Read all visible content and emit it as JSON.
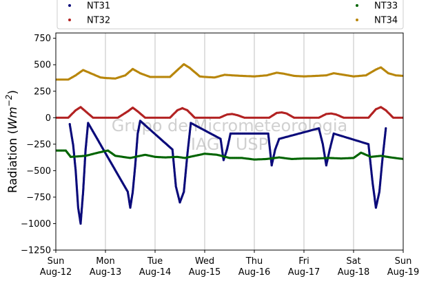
{
  "chart_data": {
    "type": "scatter",
    "title": "",
    "ylabel": "Radiation (Wm⁻²)",
    "ylabel_parts": {
      "main": "Radiation (",
      "unit": "Wm",
      "exp": "−2",
      "close": ")"
    },
    "xlabel": "",
    "ylim": [
      -1250,
      800
    ],
    "yticks": [
      -1250,
      -1000,
      -750,
      -500,
      -250,
      0,
      250,
      500,
      750
    ],
    "ytick_labels": [
      "−1250",
      "−1000",
      "−750",
      "−500",
      "−250",
      "0",
      "250",
      "500",
      "750"
    ],
    "xlim": [
      "2018-08-12",
      "2018-08-19"
    ],
    "xticks": [
      {
        "day": "Sun",
        "date": "Aug-12"
      },
      {
        "day": "Mon",
        "date": "Aug-13"
      },
      {
        "day": "Tue",
        "date": "Aug-14"
      },
      {
        "day": "Wed",
        "date": "Aug-15"
      },
      {
        "day": "Thu",
        "date": "Aug-16"
      },
      {
        "day": "Fri",
        "date": "Aug-17"
      },
      {
        "day": "Sat",
        "date": "Aug-18"
      },
      {
        "day": "Sun",
        "date": "Aug-19"
      }
    ],
    "grid": "vertical",
    "legend_position": "top",
    "watermark": [
      "Grupo de Micrometeorologia",
      "IAG / USP"
    ],
    "series": [
      {
        "name": "NT31",
        "color": "#0b0b7a",
        "points": [
          [
            0.28,
            -60
          ],
          [
            0.35,
            -260
          ],
          [
            0.4,
            -500
          ],
          [
            0.45,
            -850
          ],
          [
            0.5,
            -1000
          ],
          [
            0.55,
            -700
          ],
          [
            0.6,
            -300
          ],
          [
            0.65,
            -50
          ],
          [
            1.45,
            -700
          ],
          [
            1.5,
            -850
          ],
          [
            1.55,
            -700
          ],
          [
            1.6,
            -450
          ],
          [
            1.65,
            -150
          ],
          [
            1.7,
            -30
          ],
          [
            2.35,
            -300
          ],
          [
            2.42,
            -650
          ],
          [
            2.5,
            -800
          ],
          [
            2.58,
            -700
          ],
          [
            2.65,
            -350
          ],
          [
            2.72,
            -50
          ],
          [
            3.32,
            -200
          ],
          [
            3.38,
            -400
          ],
          [
            3.45,
            -300
          ],
          [
            3.52,
            -150
          ],
          [
            4.28,
            -150
          ],
          [
            4.35,
            -450
          ],
          [
            4.42,
            -300
          ],
          [
            4.5,
            -200
          ],
          [
            5.3,
            -100
          ],
          [
            5.38,
            -250
          ],
          [
            5.45,
            -450
          ],
          [
            5.52,
            -300
          ],
          [
            5.6,
            -150
          ],
          [
            6.3,
            -250
          ],
          [
            6.38,
            -600
          ],
          [
            6.45,
            -850
          ],
          [
            6.52,
            -700
          ],
          [
            6.58,
            -400
          ],
          [
            6.65,
            -100
          ]
        ]
      },
      {
        "name": "NT32",
        "color": "#b22222",
        "points": [
          [
            0.0,
            0
          ],
          [
            0.25,
            0
          ],
          [
            0.4,
            70
          ],
          [
            0.5,
            100
          ],
          [
            0.6,
            60
          ],
          [
            0.75,
            0
          ],
          [
            1.0,
            0
          ],
          [
            1.25,
            0
          ],
          [
            1.45,
            60
          ],
          [
            1.55,
            95
          ],
          [
            1.65,
            60
          ],
          [
            1.8,
            0
          ],
          [
            2.0,
            0
          ],
          [
            2.3,
            0
          ],
          [
            2.45,
            70
          ],
          [
            2.55,
            90
          ],
          [
            2.65,
            70
          ],
          [
            2.8,
            0
          ],
          [
            3.0,
            0
          ],
          [
            3.3,
            0
          ],
          [
            3.45,
            30
          ],
          [
            3.55,
            35
          ],
          [
            3.65,
            25
          ],
          [
            3.8,
            0
          ],
          [
            4.0,
            0
          ],
          [
            4.3,
            0
          ],
          [
            4.45,
            45
          ],
          [
            4.55,
            50
          ],
          [
            4.65,
            40
          ],
          [
            4.8,
            0
          ],
          [
            5.0,
            0
          ],
          [
            5.3,
            0
          ],
          [
            5.45,
            35
          ],
          [
            5.55,
            40
          ],
          [
            5.65,
            30
          ],
          [
            5.8,
            0
          ],
          [
            6.0,
            0
          ],
          [
            6.3,
            0
          ],
          [
            6.45,
            80
          ],
          [
            6.55,
            100
          ],
          [
            6.65,
            70
          ],
          [
            6.8,
            0
          ],
          [
            7.0,
            0
          ]
        ]
      },
      {
        "name": "NT33",
        "color": "#006400",
        "points": [
          [
            0.0,
            -310
          ],
          [
            0.2,
            -310
          ],
          [
            0.3,
            -370
          ],
          [
            0.6,
            -360
          ],
          [
            0.85,
            -330
          ],
          [
            1.05,
            -310
          ],
          [
            1.2,
            -360
          ],
          [
            1.5,
            -380
          ],
          [
            1.8,
            -350
          ],
          [
            2.0,
            -370
          ],
          [
            2.2,
            -375
          ],
          [
            2.45,
            -370
          ],
          [
            2.6,
            -380
          ],
          [
            2.8,
            -360
          ],
          [
            3.0,
            -340
          ],
          [
            3.25,
            -350
          ],
          [
            3.5,
            -380
          ],
          [
            3.75,
            -380
          ],
          [
            4.0,
            -395
          ],
          [
            4.25,
            -390
          ],
          [
            4.5,
            -375
          ],
          [
            4.75,
            -390
          ],
          [
            5.0,
            -385
          ],
          [
            5.25,
            -385
          ],
          [
            5.5,
            -380
          ],
          [
            5.75,
            -385
          ],
          [
            6.0,
            -380
          ],
          [
            6.15,
            -330
          ],
          [
            6.35,
            -370
          ],
          [
            6.55,
            -360
          ],
          [
            6.75,
            -375
          ],
          [
            7.0,
            -390
          ]
        ]
      },
      {
        "name": "NT34",
        "color": "#b8860b",
        "points": [
          [
            0.0,
            360
          ],
          [
            0.25,
            360
          ],
          [
            0.4,
            400
          ],
          [
            0.55,
            450
          ],
          [
            0.7,
            420
          ],
          [
            0.9,
            380
          ],
          [
            1.0,
            375
          ],
          [
            1.2,
            370
          ],
          [
            1.4,
            400
          ],
          [
            1.55,
            460
          ],
          [
            1.7,
            420
          ],
          [
            1.9,
            385
          ],
          [
            2.0,
            385
          ],
          [
            2.3,
            385
          ],
          [
            2.45,
            450
          ],
          [
            2.58,
            505
          ],
          [
            2.7,
            470
          ],
          [
            2.9,
            390
          ],
          [
            3.0,
            385
          ],
          [
            3.2,
            380
          ],
          [
            3.4,
            405
          ],
          [
            3.55,
            400
          ],
          [
            3.75,
            395
          ],
          [
            4.0,
            390
          ],
          [
            4.25,
            400
          ],
          [
            4.45,
            425
          ],
          [
            4.6,
            415
          ],
          [
            4.8,
            395
          ],
          [
            5.0,
            390
          ],
          [
            5.25,
            395
          ],
          [
            5.45,
            400
          ],
          [
            5.6,
            420
          ],
          [
            5.8,
            405
          ],
          [
            6.0,
            390
          ],
          [
            6.25,
            400
          ],
          [
            6.45,
            455
          ],
          [
            6.55,
            475
          ],
          [
            6.7,
            420
          ],
          [
            6.85,
            400
          ],
          [
            7.0,
            395
          ]
        ]
      }
    ]
  }
}
